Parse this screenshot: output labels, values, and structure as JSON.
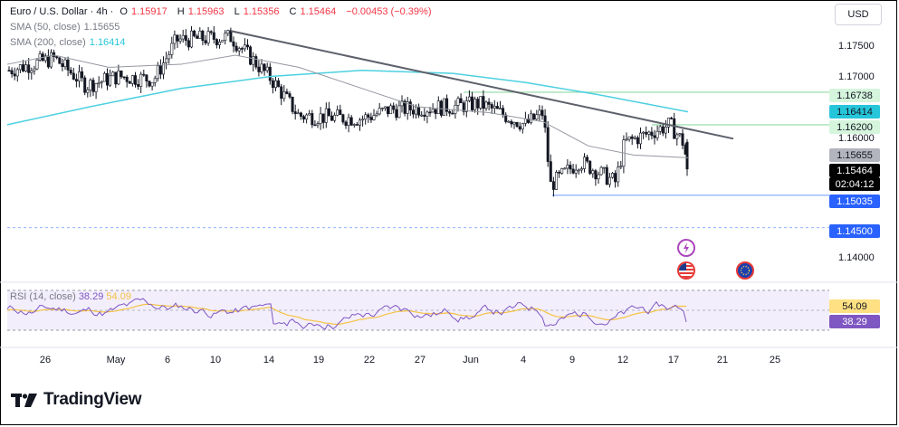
{
  "header": {
    "symbol": "Euro / U.S. Dollar · 4h ·",
    "open_label": "O",
    "open": "1.15917",
    "high_label": "H",
    "high": "1.15963",
    "low_label": "L",
    "low": "1.15356",
    "close_label": "C",
    "close": "1.15464",
    "change": "−0.00453 (−0.39%)"
  },
  "currency_button": "USD",
  "indicators": {
    "sma50_label": "SMA (50, close)",
    "sma50_value": "1.15655",
    "sma200_label": "SMA (200, close)",
    "sma200_value": "1.16414",
    "rsi_label": "RSI (14, close)",
    "rsi_value": "38.29",
    "rsi_ma_value": "54.09"
  },
  "price_axis": [
    "1.17500",
    "1.17000",
    "1.16000",
    "1.14000"
  ],
  "price_badges": [
    {
      "text": "1.16738",
      "bg": "#d5f5dc",
      "fg": "#131722"
    },
    {
      "text": "1.16414",
      "bg": "#26c6da",
      "fg": "#131722"
    },
    {
      "text": "1.16200",
      "bg": "#d5f5dc",
      "fg": "#131722"
    },
    {
      "text": "1.15655",
      "bg": "#b2b5be",
      "fg": "#131722"
    },
    {
      "text": "1.15464",
      "bg": "#000000",
      "fg": "#ffffff"
    },
    {
      "text": "02:04:12",
      "bg": "#000000",
      "fg": "#ffffff"
    },
    {
      "text": "1.15035",
      "bg": "#2962ff",
      "fg": "#ffffff"
    },
    {
      "text": "1.14500",
      "bg": "#2962ff",
      "fg": "#ffffff"
    }
  ],
  "rsi_badges": [
    {
      "text": "54.09",
      "bg": "#ffe082",
      "fg": "#131722"
    },
    {
      "text": "38.29",
      "bg": "#7e57c2",
      "fg": "#ffffff"
    }
  ],
  "time_axis": [
    "26",
    "May",
    "6",
    "10",
    "14",
    "19",
    "22",
    "27",
    "Jun",
    "4",
    "9",
    "12",
    "17",
    "21",
    "25"
  ],
  "logo_text": "TradingView",
  "colors": {
    "up": "#131722",
    "down": "#131722",
    "sma50": "#9598a1",
    "sma200": "#4dd0e1",
    "trend": "#5d606b",
    "rsi": "#7e57c2",
    "rsi_ma": "#f5c242",
    "level_blue": "#90b4ff",
    "level_green": "#a5e0b4"
  },
  "chart_data": {
    "type": "candlestick",
    "title": "Euro / U.S. Dollar · 4h",
    "y_axis_ticks": [
      1.175,
      1.17,
      1.16,
      1.14
    ],
    "ylim": [
      1.1355,
      1.1795
    ],
    "x": [
      "Apr 26",
      "May",
      "May 6",
      "May 10",
      "May 14",
      "May 19",
      "May 22",
      "May 27",
      "Jun",
      "Jun 4",
      "Jun 9",
      "Jun 12",
      "Jun 17",
      "Jun 21",
      "Jun 25"
    ],
    "series": [
      {
        "name": "SMA (50, close)",
        "last": 1.15655
      },
      {
        "name": "SMA (200, close)",
        "last": 1.16414
      },
      {
        "name": "RSI (14, close)",
        "last": 38.29,
        "ma": 54.09
      }
    ],
    "horizontal_levels": [
      1.16738,
      1.162,
      1.15035,
      1.145
    ],
    "trendline": {
      "from": [
        "May 10",
        1.1775
      ],
      "to": [
        "Jun 19",
        1.1597
      ]
    },
    "last": {
      "open": 1.15917,
      "high": 1.15963,
      "low": 1.15356,
      "close": 1.15464
    }
  }
}
